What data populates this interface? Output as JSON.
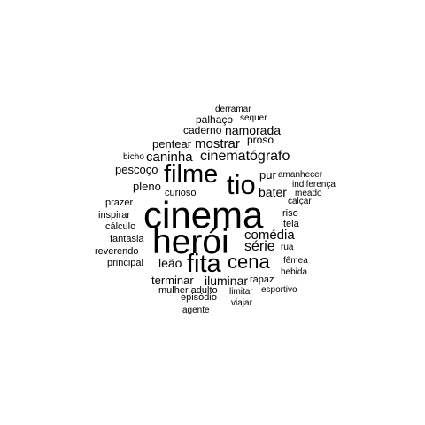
{
  "colors": {
    "background": "#ffffff",
    "text": "#000000"
  },
  "words": [
    "derramar",
    "palhaço",
    "sequer",
    "caderno",
    "namorada",
    "pentear",
    "mostrar",
    "proso",
    "bicho",
    "caninha",
    "cinematógrafo",
    "pescoço",
    "filme",
    "tio",
    "amanhecer",
    "pur",
    "indiferença",
    "pleno",
    "meado",
    "curioso",
    "bater",
    "calçar",
    "prazer",
    "cinema",
    "riso",
    "inspirar",
    "tela",
    "cálculo",
    "herói",
    "comédia",
    "fantasia",
    "série",
    "rua",
    "reverendo",
    "principal",
    "leão",
    "fita",
    "cena",
    "fêmea",
    "bebida",
    "terminar",
    "iluminar",
    "rapaz",
    "mulher adulto",
    "limitar",
    "esportivo",
    "episódio",
    "viajar",
    "agente"
  ]
}
